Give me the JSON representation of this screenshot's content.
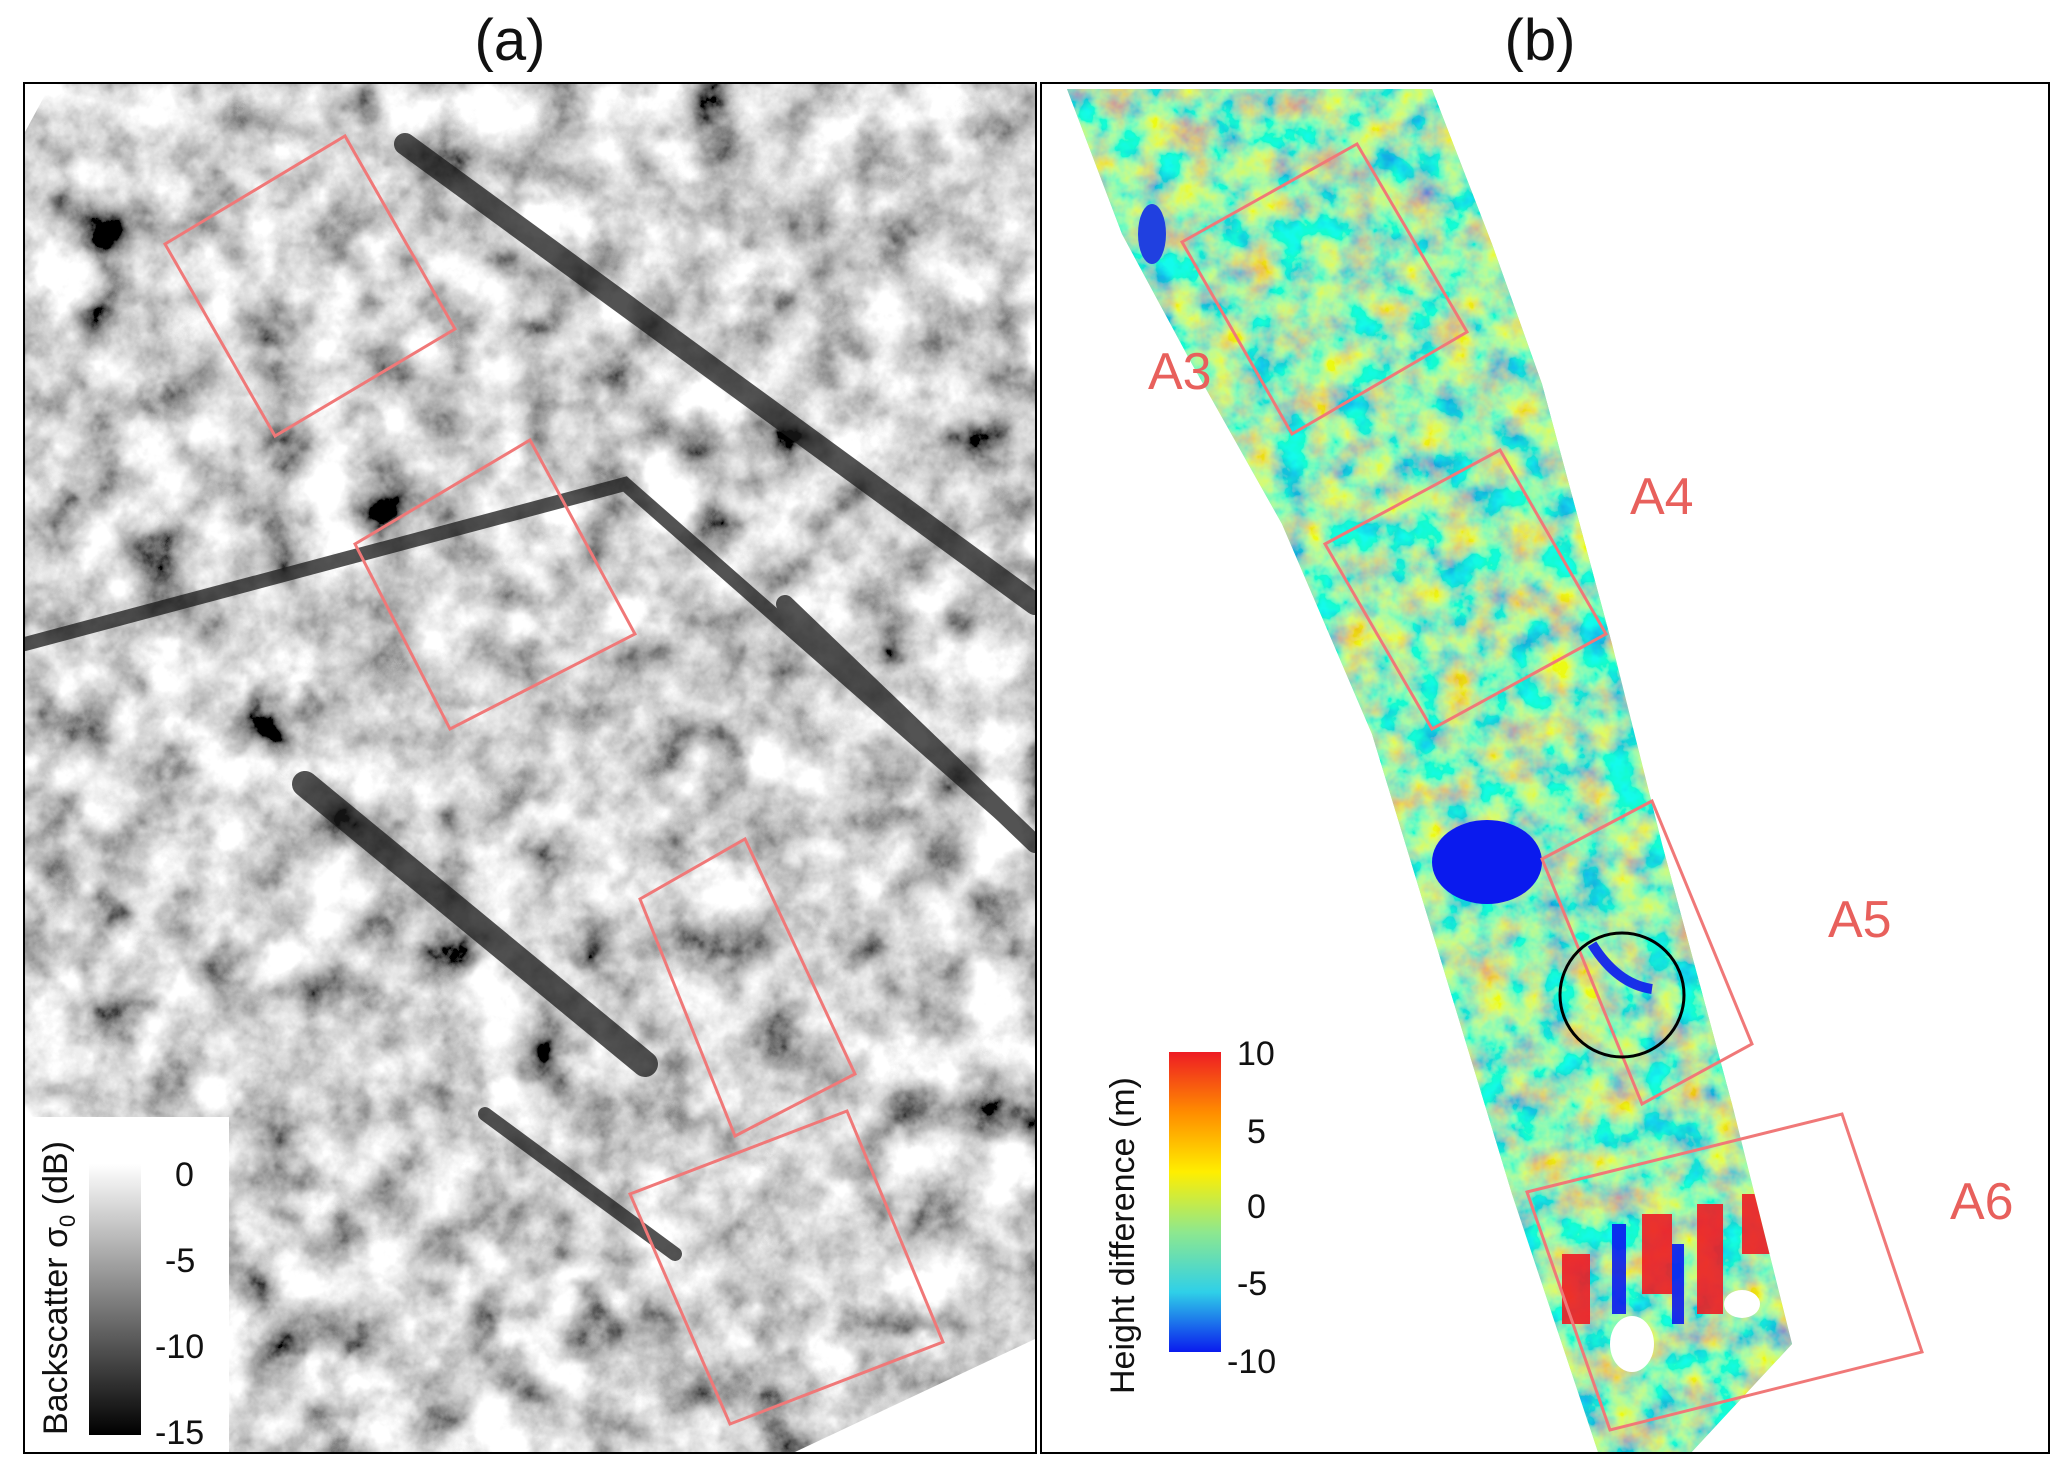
{
  "panel_a": {
    "title": "(a)",
    "colorbar": {
      "label_prefix": "Backscatter σ",
      "label_sub": "0",
      "label_suffix": " (dB)",
      "ticks": [
        "0",
        "-5",
        "-10",
        "-15"
      ],
      "colors": [
        "#ffffff",
        "#000000"
      ]
    },
    "box_color": "#f07878"
  },
  "panel_b": {
    "title": "(b)",
    "colorbar": {
      "label": "Height difference  (m)",
      "ticks": [
        "10",
        "5",
        "0",
        "-5",
        "-10"
      ],
      "colors": [
        "#ee1c24",
        "#ff8c00",
        "#ffee00",
        "#8ee88e",
        "#2fd0e8",
        "#0a1aee"
      ]
    },
    "area_labels": [
      "A3",
      "A4",
      "A5",
      "A6"
    ],
    "label_color": "#e8605c"
  }
}
